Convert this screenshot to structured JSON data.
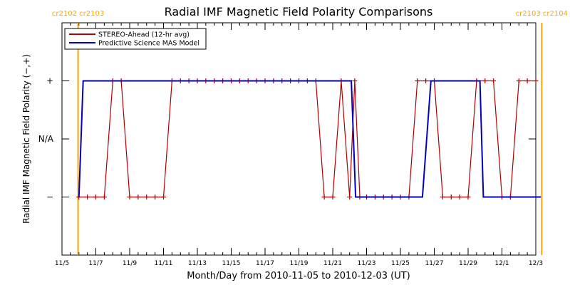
{
  "chart_data": {
    "type": "line",
    "title": "Radial IMF Magnetic Field Polarity Comparisons",
    "xlabel": "Month/Day from 2010-11-05 to 2010-12-03 (UT)",
    "ylabel": "Radial IMF Magnetic Field Polarity (−,+)",
    "xlim": [
      "2010-11-05",
      "2010-12-03"
    ],
    "x_ticks": [
      "11/5",
      "11/7",
      "11/9",
      "11/11",
      "11/13",
      "11/15",
      "11/17",
      "11/19",
      "11/21",
      "11/23",
      "11/25",
      "11/27",
      "11/29",
      "12/1",
      "12/3"
    ],
    "x_tick_days": [
      5,
      7,
      9,
      11,
      13,
      15,
      17,
      19,
      21,
      23,
      25,
      27,
      29,
      31,
      33
    ],
    "y_categories": [
      "−",
      "N/A",
      "+"
    ],
    "y_tick_labels": [
      "−",
      "N/A",
      "+"
    ],
    "y_tick_values": [
      -1,
      0,
      1
    ],
    "ylim": [
      -2,
      2
    ],
    "carrington_markers": [
      {
        "day": 5.95,
        "labels": [
          "cr2102",
          "cr2103"
        ],
        "color": "#FFA500"
      },
      {
        "day": 33.35,
        "labels": [
          "cr2103",
          "cr2104"
        ],
        "color": "#FFA500"
      }
    ],
    "legend": {
      "placement": "top-left"
    },
    "series": [
      {
        "name": "STEREO-Ahead (12-hr avg)",
        "color": "#B00000",
        "markers": true,
        "points": [
          [
            6.0,
            -1
          ],
          [
            6.5,
            -1
          ],
          [
            7.0,
            -1
          ],
          [
            7.5,
            -1
          ],
          [
            8.0,
            1
          ],
          [
            8.5,
            1
          ],
          [
            9.0,
            -1
          ],
          [
            9.5,
            -1
          ],
          [
            10.0,
            -1
          ],
          [
            10.5,
            -1
          ],
          [
            11.0,
            -1
          ],
          [
            11.5,
            1
          ],
          [
            12.0,
            1
          ],
          [
            12.5,
            1
          ],
          [
            13.0,
            1
          ],
          [
            13.5,
            1
          ],
          [
            14.0,
            1
          ],
          [
            14.5,
            1
          ],
          [
            15.0,
            1
          ],
          [
            15.5,
            1
          ],
          [
            16.0,
            1
          ],
          [
            16.5,
            1
          ],
          [
            17.0,
            1
          ],
          [
            17.5,
            1
          ],
          [
            18.0,
            1
          ],
          [
            18.5,
            1
          ],
          [
            19.0,
            1
          ],
          [
            19.5,
            1
          ],
          [
            20.0,
            1
          ],
          [
            20.5,
            -1
          ],
          [
            21.0,
            -1
          ],
          [
            21.5,
            1
          ],
          [
            22.0,
            -1
          ],
          [
            22.3,
            1
          ],
          [
            22.6,
            -1
          ],
          [
            23.0,
            -1
          ],
          [
            23.5,
            -1
          ],
          [
            24.0,
            -1
          ],
          [
            24.5,
            -1
          ],
          [
            25.0,
            -1
          ],
          [
            25.5,
            -1
          ],
          [
            26.0,
            1
          ],
          [
            26.5,
            1
          ],
          [
            27.0,
            1
          ],
          [
            27.5,
            -1
          ],
          [
            28.0,
            -1
          ],
          [
            28.5,
            -1
          ],
          [
            29.0,
            -1
          ],
          [
            29.5,
            1
          ],
          [
            30.0,
            1
          ],
          [
            30.5,
            1
          ],
          [
            31.0,
            -1
          ],
          [
            31.5,
            -1
          ],
          [
            32.0,
            1
          ],
          [
            32.5,
            1
          ],
          [
            33.0,
            1
          ]
        ]
      },
      {
        "name": "Predictive Science MAS Model",
        "color": "#0000C0",
        "markers": false,
        "points": [
          [
            6.0,
            -1
          ],
          [
            6.25,
            1
          ],
          [
            22.1,
            1
          ],
          [
            22.35,
            -1
          ],
          [
            26.3,
            -1
          ],
          [
            26.8,
            1
          ],
          [
            29.7,
            1
          ],
          [
            29.9,
            -1
          ],
          [
            33.3,
            -1
          ]
        ]
      }
    ]
  }
}
